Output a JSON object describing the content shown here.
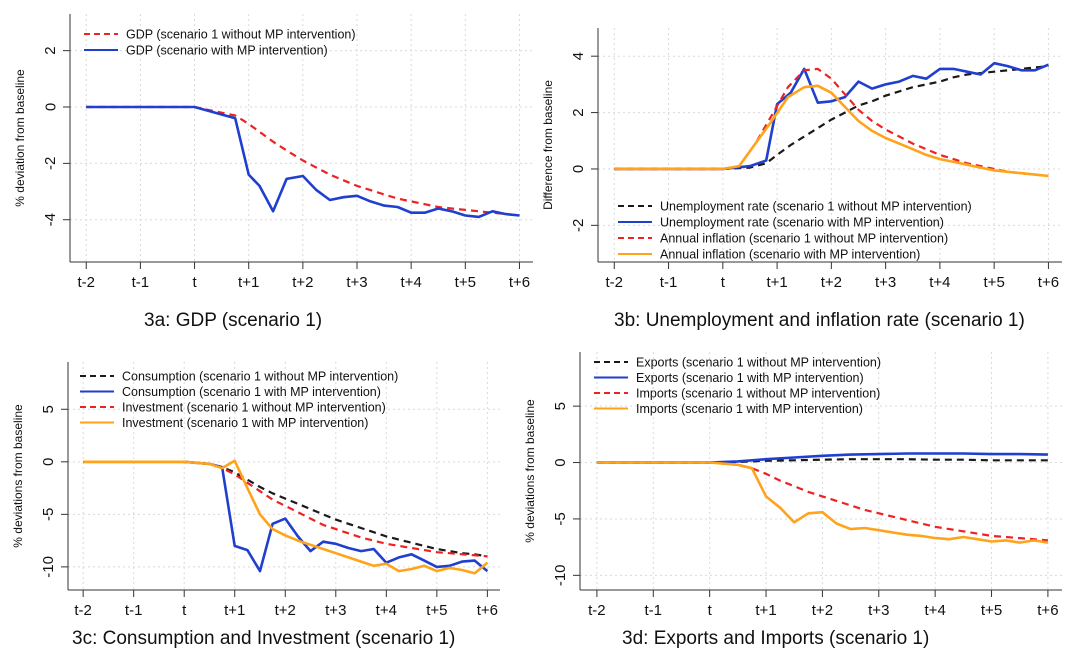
{
  "tick_labels": [
    "t-2",
    "t-1",
    "t",
    "t+1",
    "t+2",
    "t+3",
    "t+4",
    "t+5",
    "t+6"
  ],
  "colors": {
    "black": "#1a1a1a",
    "blue": "#1f3fcf",
    "red": "#ee2222",
    "orange": "#ffa31a"
  },
  "chart_data": [
    {
      "type": "line",
      "caption": "3a: GDP (scenario 1)",
      "ylabel": "% deviation from baseline",
      "xlim": [
        -2.3,
        6.25
      ],
      "ylim": [
        -5.5,
        3.3
      ],
      "yticks": [
        2,
        0,
        -2,
        -4
      ],
      "legend_position": "top-left",
      "series": [
        {
          "name": "GDP (scenario 1 without MP intervention)",
          "color": "red",
          "dash": true,
          "x": [
            -2,
            0,
            0.75,
            1,
            1.25,
            1.5,
            1.75,
            2,
            2.25,
            2.5,
            2.75,
            3,
            3.25,
            3.5,
            3.75,
            4,
            4.25,
            4.5,
            4.75,
            5,
            5.25,
            5.5,
            5.75,
            6
          ],
          "y": [
            0,
            0,
            -0.3,
            -0.6,
            -0.95,
            -1.3,
            -1.6,
            -1.9,
            -2.15,
            -2.4,
            -2.6,
            -2.8,
            -2.95,
            -3.1,
            -3.25,
            -3.35,
            -3.45,
            -3.55,
            -3.6,
            -3.65,
            -3.7,
            -3.75,
            -3.8,
            -3.85
          ]
        },
        {
          "name": "GDP (scenario with MP intervention)",
          "color": "blue",
          "dash": false,
          "x": [
            -2,
            0,
            0.75,
            1,
            1.2,
            1.45,
            1.7,
            2,
            2.25,
            2.5,
            2.75,
            3,
            3.25,
            3.5,
            3.75,
            4,
            4.25,
            4.5,
            4.75,
            5,
            5.25,
            5.5,
            5.75,
            6
          ],
          "y": [
            0,
            0,
            -0.4,
            -2.4,
            -2.8,
            -3.7,
            -2.55,
            -2.45,
            -2.95,
            -3.3,
            -3.2,
            -3.15,
            -3.35,
            -3.5,
            -3.55,
            -3.75,
            -3.75,
            -3.6,
            -3.7,
            -3.85,
            -3.9,
            -3.7,
            -3.8,
            -3.85
          ]
        }
      ]
    },
    {
      "type": "line",
      "caption": "3b: Unemployment and inflation rate (scenario 1)",
      "ylabel": "Difference from baseline",
      "xlim": [
        -2.3,
        6.25
      ],
      "ylim": [
        -3.3,
        5.0
      ],
      "yticks": [
        4,
        2,
        0,
        -2
      ],
      "legend_position": "bottom-left",
      "series": [
        {
          "name": "Unemployment rate (scenario 1 without MP intervention)",
          "color": "black",
          "dash": true,
          "x": [
            -2,
            0,
            0.5,
            0.8,
            1,
            1.25,
            1.5,
            1.75,
            2,
            2.25,
            2.5,
            2.75,
            3,
            3.25,
            3.5,
            3.75,
            4,
            4.25,
            4.5,
            4.75,
            5,
            5.25,
            5.5,
            5.75,
            6
          ],
          "y": [
            0,
            0,
            0.05,
            0.2,
            0.5,
            0.85,
            1.15,
            1.45,
            1.75,
            2.0,
            2.25,
            2.4,
            2.6,
            2.75,
            2.9,
            3.0,
            3.1,
            3.25,
            3.35,
            3.4,
            3.45,
            3.5,
            3.55,
            3.6,
            3.65
          ]
        },
        {
          "name": "Unemployment rate (scenario with MP intervention)",
          "color": "blue",
          "dash": false,
          "x": [
            -2,
            0,
            0.5,
            0.8,
            1,
            1.25,
            1.5,
            1.75,
            2,
            2.25,
            2.5,
            2.75,
            3,
            3.25,
            3.5,
            3.75,
            4,
            4.25,
            4.5,
            4.75,
            5,
            5.25,
            5.5,
            5.75,
            6
          ],
          "y": [
            0,
            0,
            0.1,
            0.3,
            2.3,
            2.7,
            3.55,
            2.35,
            2.4,
            2.55,
            3.1,
            2.85,
            3.0,
            3.1,
            3.3,
            3.2,
            3.55,
            3.55,
            3.45,
            3.35,
            3.75,
            3.65,
            3.5,
            3.5,
            3.7
          ]
        },
        {
          "name": "Annual inflation (scenario 1 without MP intervention)",
          "color": "red",
          "dash": true,
          "x": [
            -2,
            0,
            0.3,
            0.6,
            0.9,
            1.2,
            1.5,
            1.75,
            2,
            2.25,
            2.5,
            2.75,
            3,
            3.25,
            3.5,
            3.75,
            4,
            4.25,
            4.5,
            4.75,
            5,
            5.25,
            5.5,
            5.75,
            6
          ],
          "y": [
            0,
            0,
            0.1,
            0.9,
            1.9,
            2.9,
            3.5,
            3.55,
            3.2,
            2.65,
            2.1,
            1.7,
            1.4,
            1.15,
            0.9,
            0.7,
            0.5,
            0.35,
            0.2,
            0.1,
            0.0,
            -0.1,
            -0.15,
            -0.2,
            -0.25
          ]
        },
        {
          "name": "Annual inflation (scenario with MP intervention)",
          "color": "orange",
          "dash": false,
          "x": [
            -2,
            0,
            0.3,
            0.6,
            0.9,
            1.2,
            1.5,
            1.75,
            2,
            2.25,
            2.5,
            2.75,
            3,
            3.25,
            3.5,
            3.75,
            4,
            4.25,
            4.5,
            4.75,
            5,
            5.25,
            5.5,
            5.75,
            6
          ],
          "y": [
            0,
            0,
            0.1,
            0.9,
            1.7,
            2.55,
            2.9,
            2.95,
            2.7,
            2.2,
            1.7,
            1.35,
            1.1,
            0.9,
            0.7,
            0.5,
            0.35,
            0.25,
            0.15,
            0.05,
            -0.05,
            -0.1,
            -0.15,
            -0.2,
            -0.25
          ]
        }
      ]
    },
    {
      "type": "line",
      "caption": "3c: Consumption and Investment (scenario 1)",
      "ylabel": "% deviations from baseline",
      "xlim": [
        -2.3,
        6.25
      ],
      "ylim": [
        -12.2,
        9.5
      ],
      "yticks": [
        5,
        0,
        -5,
        -10
      ],
      "legend_position": "top-left",
      "series": [
        {
          "name": "Consumption (scenario 1 without MP intervention)",
          "color": "black",
          "dash": true,
          "x": [
            -2,
            0,
            0.5,
            0.75,
            1,
            1.25,
            1.5,
            1.75,
            2,
            2.25,
            2.5,
            2.75,
            3,
            3.25,
            3.5,
            3.75,
            4,
            4.25,
            4.5,
            4.75,
            5,
            5.25,
            5.5,
            5.75,
            6
          ],
          "y": [
            0,
            0,
            -0.2,
            -0.5,
            -1.0,
            -1.7,
            -2.4,
            -3.0,
            -3.5,
            -4.0,
            -4.5,
            -5.0,
            -5.5,
            -5.9,
            -6.3,
            -6.7,
            -7.1,
            -7.4,
            -7.7,
            -8.0,
            -8.3,
            -8.5,
            -8.7,
            -8.8,
            -9.0
          ]
        },
        {
          "name": "Consumption (scenario 1 with MP intervention)",
          "color": "blue",
          "dash": false,
          "x": [
            -2,
            0,
            0.5,
            0.75,
            1,
            1.25,
            1.5,
            1.75,
            2,
            2.25,
            2.5,
            2.75,
            3,
            3.25,
            3.5,
            3.75,
            4,
            4.25,
            4.5,
            4.75,
            5,
            5.25,
            5.5,
            5.75,
            6
          ],
          "y": [
            0,
            0,
            -0.2,
            -0.5,
            -8.0,
            -8.4,
            -10.4,
            -5.9,
            -5.4,
            -7.1,
            -8.5,
            -7.6,
            -7.8,
            -8.2,
            -8.5,
            -8.3,
            -9.6,
            -9.1,
            -8.8,
            -9.4,
            -10.0,
            -9.9,
            -9.5,
            -9.4,
            -10.4
          ]
        },
        {
          "name": "Investment (scenario 1 without MP intervention)",
          "color": "red",
          "dash": true,
          "x": [
            -2,
            0,
            0.5,
            0.75,
            1,
            1.25,
            1.5,
            1.75,
            2,
            2.25,
            2.5,
            2.75,
            3,
            3.25,
            3.5,
            3.75,
            4,
            4.25,
            4.5,
            4.75,
            5,
            5.25,
            5.5,
            5.75,
            6
          ],
          "y": [
            0,
            0,
            -0.2,
            -0.6,
            -1.2,
            -2.0,
            -2.8,
            -3.6,
            -4.2,
            -4.8,
            -5.4,
            -6.0,
            -6.4,
            -6.8,
            -7.2,
            -7.5,
            -7.8,
            -8.0,
            -8.2,
            -8.4,
            -8.6,
            -8.7,
            -8.8,
            -8.9,
            -9.0
          ]
        },
        {
          "name": "Investment (scenario 1 with MP intervention)",
          "color": "orange",
          "dash": false,
          "x": [
            -2,
            0,
            0.5,
            0.75,
            1,
            1.25,
            1.5,
            1.75,
            2,
            2.25,
            2.5,
            2.75,
            3,
            3.25,
            3.5,
            3.75,
            4,
            4.25,
            4.5,
            4.75,
            5,
            5.25,
            5.5,
            5.75,
            6
          ],
          "y": [
            0,
            0,
            -0.2,
            -0.6,
            0.1,
            -2.5,
            -5.0,
            -6.4,
            -7.0,
            -7.5,
            -7.9,
            -8.3,
            -8.7,
            -9.1,
            -9.5,
            -9.9,
            -9.7,
            -10.4,
            -10.2,
            -9.9,
            -10.4,
            -10.1,
            -10.3,
            -10.6,
            -9.6
          ]
        }
      ]
    },
    {
      "type": "line",
      "caption": "3d: Exports and Imports (scenario 1)",
      "ylabel": "% deviations from baseline",
      "xlim": [
        -2.3,
        6.25
      ],
      "ylim": [
        -11.3,
        9.8
      ],
      "yticks": [
        5,
        0,
        -5,
        -10
      ],
      "legend_position": "top-left",
      "series": [
        {
          "name": "Exports (scenario 1 without MP intervention)",
          "color": "black",
          "dash": true,
          "x": [
            -2,
            0,
            0.5,
            1,
            1.5,
            2,
            2.5,
            3,
            3.5,
            4,
            4.5,
            5,
            5.5,
            6
          ],
          "y": [
            0,
            0,
            0.05,
            0.15,
            0.2,
            0.25,
            0.3,
            0.3,
            0.3,
            0.25,
            0.25,
            0.2,
            0.2,
            0.2
          ]
        },
        {
          "name": "Exports (scenario 1 with MP intervention)",
          "color": "blue",
          "dash": false,
          "x": [
            -2,
            0,
            0.5,
            1,
            1.5,
            2,
            2.5,
            3,
            3.5,
            4,
            4.5,
            5,
            5.5,
            6
          ],
          "y": [
            0,
            0,
            0.1,
            0.3,
            0.45,
            0.6,
            0.7,
            0.75,
            0.8,
            0.8,
            0.8,
            0.75,
            0.75,
            0.7
          ]
        },
        {
          "name": "Imports (scenario 1 without MP intervention)",
          "color": "red",
          "dash": true,
          "x": [
            -2,
            0,
            0.5,
            0.75,
            1,
            1.25,
            1.5,
            1.75,
            2,
            2.25,
            2.5,
            2.75,
            3,
            3.25,
            3.5,
            3.75,
            4,
            4.25,
            4.5,
            4.75,
            5,
            5.25,
            5.5,
            5.75,
            6
          ],
          "y": [
            0,
            0,
            -0.2,
            -0.5,
            -1.0,
            -1.6,
            -2.1,
            -2.6,
            -3.0,
            -3.4,
            -3.8,
            -4.2,
            -4.5,
            -4.8,
            -5.1,
            -5.4,
            -5.7,
            -5.9,
            -6.1,
            -6.3,
            -6.5,
            -6.6,
            -6.7,
            -6.8,
            -6.9
          ]
        },
        {
          "name": "Imports (scenario 1 with MP intervention)",
          "color": "orange",
          "dash": false,
          "x": [
            -2,
            0,
            0.5,
            0.75,
            1,
            1.25,
            1.5,
            1.75,
            2,
            2.25,
            2.5,
            2.75,
            3,
            3.25,
            3.5,
            3.75,
            4,
            4.25,
            4.5,
            4.75,
            5,
            5.25,
            5.5,
            5.75,
            6
          ],
          "y": [
            0,
            0,
            -0.2,
            -0.5,
            -3.0,
            -4.0,
            -5.3,
            -4.5,
            -4.4,
            -5.4,
            -5.9,
            -5.8,
            -6.0,
            -6.2,
            -6.4,
            -6.5,
            -6.7,
            -6.8,
            -6.6,
            -6.8,
            -7.0,
            -6.9,
            -7.1,
            -6.9,
            -7.1
          ]
        }
      ]
    }
  ]
}
